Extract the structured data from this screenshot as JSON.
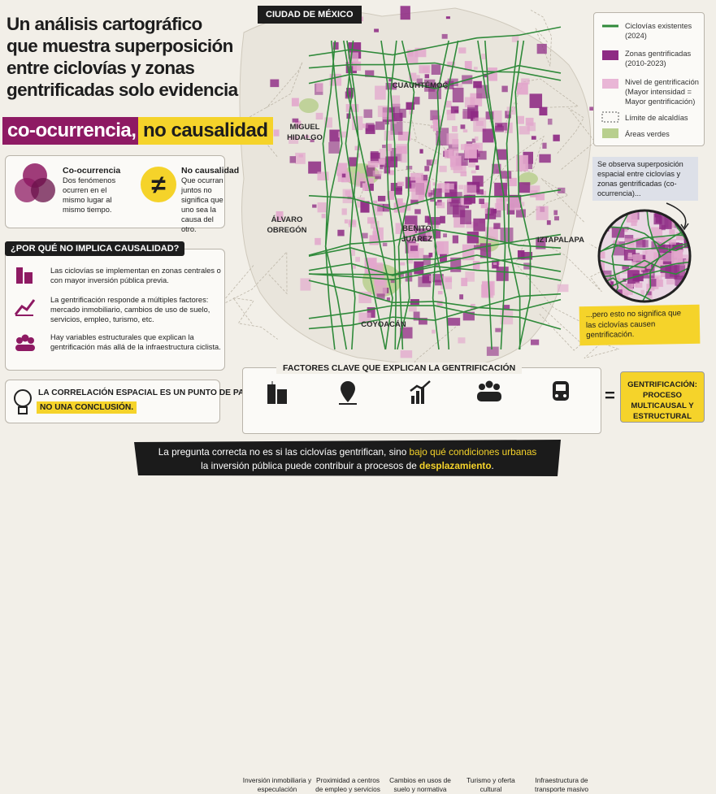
{
  "header": {
    "title_lines": [
      "Un análisis cartográfico",
      "que muestra superposición",
      "entre ciclovías y zonas",
      "gentrificadas solo evidencia"
    ],
    "highlight_1": "co-ocurrencia,",
    "highlight_2": "no causalidad"
  },
  "concepts": [
    {
      "title": "Co-ocurrencia",
      "text": "Dos fenómenos ocurren en el mismo lugar al mismo tiempo."
    },
    {
      "symbol": "≠",
      "title": "No causalidad",
      "text": "Que ocurran juntos no significa que uno sea la causa del otro."
    }
  ],
  "why": {
    "title": "¿POR QUÉ NO IMPLICA CAUSALIDAD?",
    "items": [
      "Las ciclovías se implementan en zonas centrales o con mayor inversión pública previa.",
      "La gentrificación responde a múltiples factores: mercado inmobiliario, cambios de uso de suelo, servicios, empleo, turismo, etc.",
      "Hay variables estructurales que explican la gentrificación más allá de la infraestructura ciclista."
    ]
  },
  "note": {
    "line_1": "LA CORRELACIÓN ESPACIAL ES UN PUNTO DE PARTIDA,",
    "line_2": "NO UNA CONCLUSIÓN."
  },
  "map": {
    "badge": "CIUDAD DE MÉXICO",
    "labels": [
      [
        "CUAUHTÉMOC"
      ],
      [
        "MIGUEL",
        "HIDALGO"
      ],
      [
        "ÁLVARO",
        "OBREGÓN"
      ],
      [
        "BENITO",
        "JUÁREZ"
      ],
      [
        "IZTAPALAPA"
      ],
      [
        "COYOACÁN"
      ]
    ]
  },
  "legend": [
    {
      "label": "Ciclovías existentes (2024)"
    },
    {
      "label": "Zonas gentrificadas (2010-2023)"
    },
    {
      "label": "Nivel de gentrificación (Mayor intensidad = Mayor gentrificación)"
    },
    {
      "label": "Límite de alcaldías"
    },
    {
      "label": "Áreas verdes"
    }
  ],
  "callouts": {
    "top": "Se observa superposición espacial entre ciclovías y zonas gentrificadas (co-ocurrencia)...",
    "bottom": "...pero esto no significa que las ciclovías causen gentrificación."
  },
  "factors": {
    "title": "FACTORES CLAVE QUE EXPLICAN LA GENTRIFICACIÓN",
    "items": [
      "Inversión inmobiliaria y especulación",
      "Proximidad a centros de empleo y servicios",
      "Cambios en usos de suelo y normativa",
      "Turismo y oferta cultural",
      "Infraestructura de transporte masivo"
    ],
    "equals": "=",
    "result": "GENTRIFICACIÓN: PROCESO MULTICAUSAL Y ESTRUCTURAL"
  },
  "footer": {
    "line_1": [
      "La pregunta correcta no es si las ciclovías gentrifican, sino",
      "bajo qué condiciones urbanas"
    ],
    "line_2": [
      "la inversión pública puede contribuir a procesos de",
      "desplazamiento",
      "."
    ]
  }
}
